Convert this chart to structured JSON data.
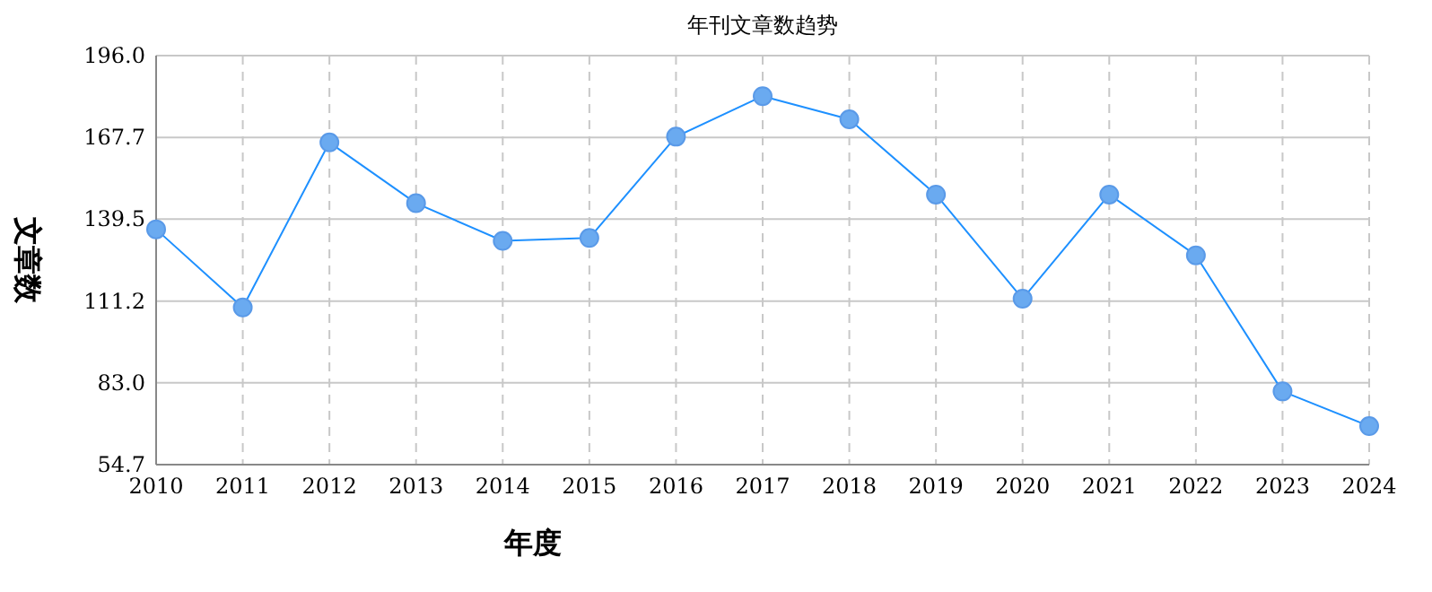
{
  "chart_data": {
    "type": "line",
    "title": "年刊文章数趋势",
    "xlabel": "年度",
    "ylabel": "文章数",
    "categories": [
      "2010",
      "2011",
      "2012",
      "2013",
      "2014",
      "2015",
      "2016",
      "2017",
      "2018",
      "2019",
      "2020",
      "2021",
      "2022",
      "2023",
      "2024"
    ],
    "series": [
      {
        "color": "#1e90ff",
        "values": [
          136,
          109,
          166,
          145,
          132,
          133,
          168,
          182,
          174,
          148,
          112,
          148,
          127,
          80,
          68
        ]
      }
    ],
    "ylim": [
      54.7,
      196.0
    ],
    "yticks": [
      54.7,
      {
        "value": 83,
        "label": "83.0"
      },
      111.2,
      139.5,
      167.7,
      {
        "value": 196,
        "label": "196.0"
      }
    ],
    "grid": true,
    "marker": "circle",
    "line_style": "solid"
  }
}
